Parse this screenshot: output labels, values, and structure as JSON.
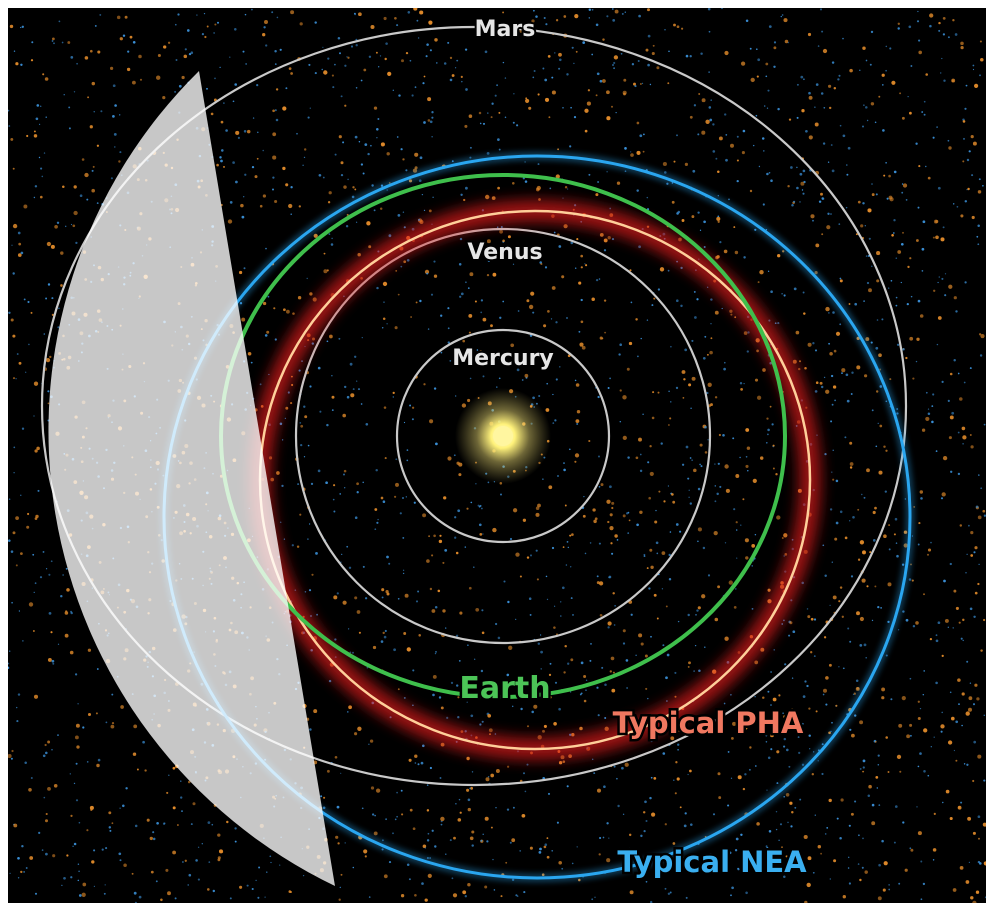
{
  "labels": {
    "mars": "Mars",
    "venus": "Venus",
    "mercury": "Mercury",
    "earth": "Earth",
    "pha": "Typical PHA",
    "nea": "Typical NEA"
  },
  "colors": {
    "background": "#000000",
    "planet_orbit": "#c9c9c9",
    "earth_orbit": "#3fbf4c",
    "pha_orbit": "#ff5a3c",
    "pha_glow": "#e01e1e",
    "nea_orbit": "#2aa6f0",
    "sun": "#fff27a",
    "asteroid_orange": "#e08a2a",
    "asteroid_blue": "#3a8fd6",
    "earth_label": "#4cc457",
    "pha_label": "#f07860",
    "nea_label": "#3aaff0",
    "planet_label": "#e6e6e6",
    "survey_wedge": "#ffffff"
  }
}
